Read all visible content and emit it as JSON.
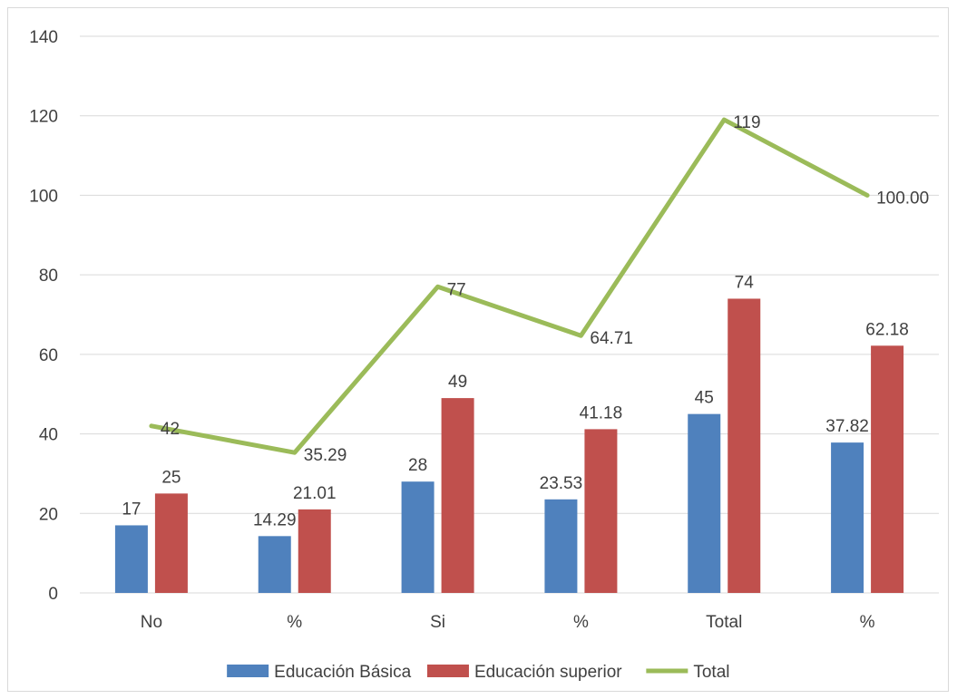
{
  "chart_data": {
    "type": "bar",
    "categories": [
      "No",
      "%",
      "Si",
      "%",
      "Total",
      "%"
    ],
    "series": [
      {
        "name": "Educación Básica",
        "kind": "bar",
        "color": "#4f81bd",
        "values": [
          17,
          14.29,
          28,
          23.53,
          45,
          37.82
        ],
        "labels": [
          "17",
          "14.29",
          "28",
          "23.53",
          "45",
          "37.82"
        ]
      },
      {
        "name": "Educación superior",
        "kind": "bar",
        "color": "#c0504d",
        "values": [
          25,
          21.01,
          49,
          41.18,
          74,
          62.18
        ],
        "labels": [
          "25",
          "21.01",
          "49",
          "41.18",
          "74",
          "62.18"
        ]
      },
      {
        "name": "Total",
        "kind": "line",
        "color": "#9bbb59",
        "values": [
          42,
          35.29,
          77,
          64.71,
          119,
          100.0
        ],
        "labels": [
          "42",
          "35.29",
          "77",
          "64.71",
          "119",
          "100.00"
        ]
      }
    ],
    "ylim": [
      0,
      140
    ],
    "yticks": [
      "0",
      "20",
      "40",
      "60",
      "80",
      "100",
      "120",
      "140"
    ],
    "grid": true,
    "legend_position": "bottom"
  }
}
